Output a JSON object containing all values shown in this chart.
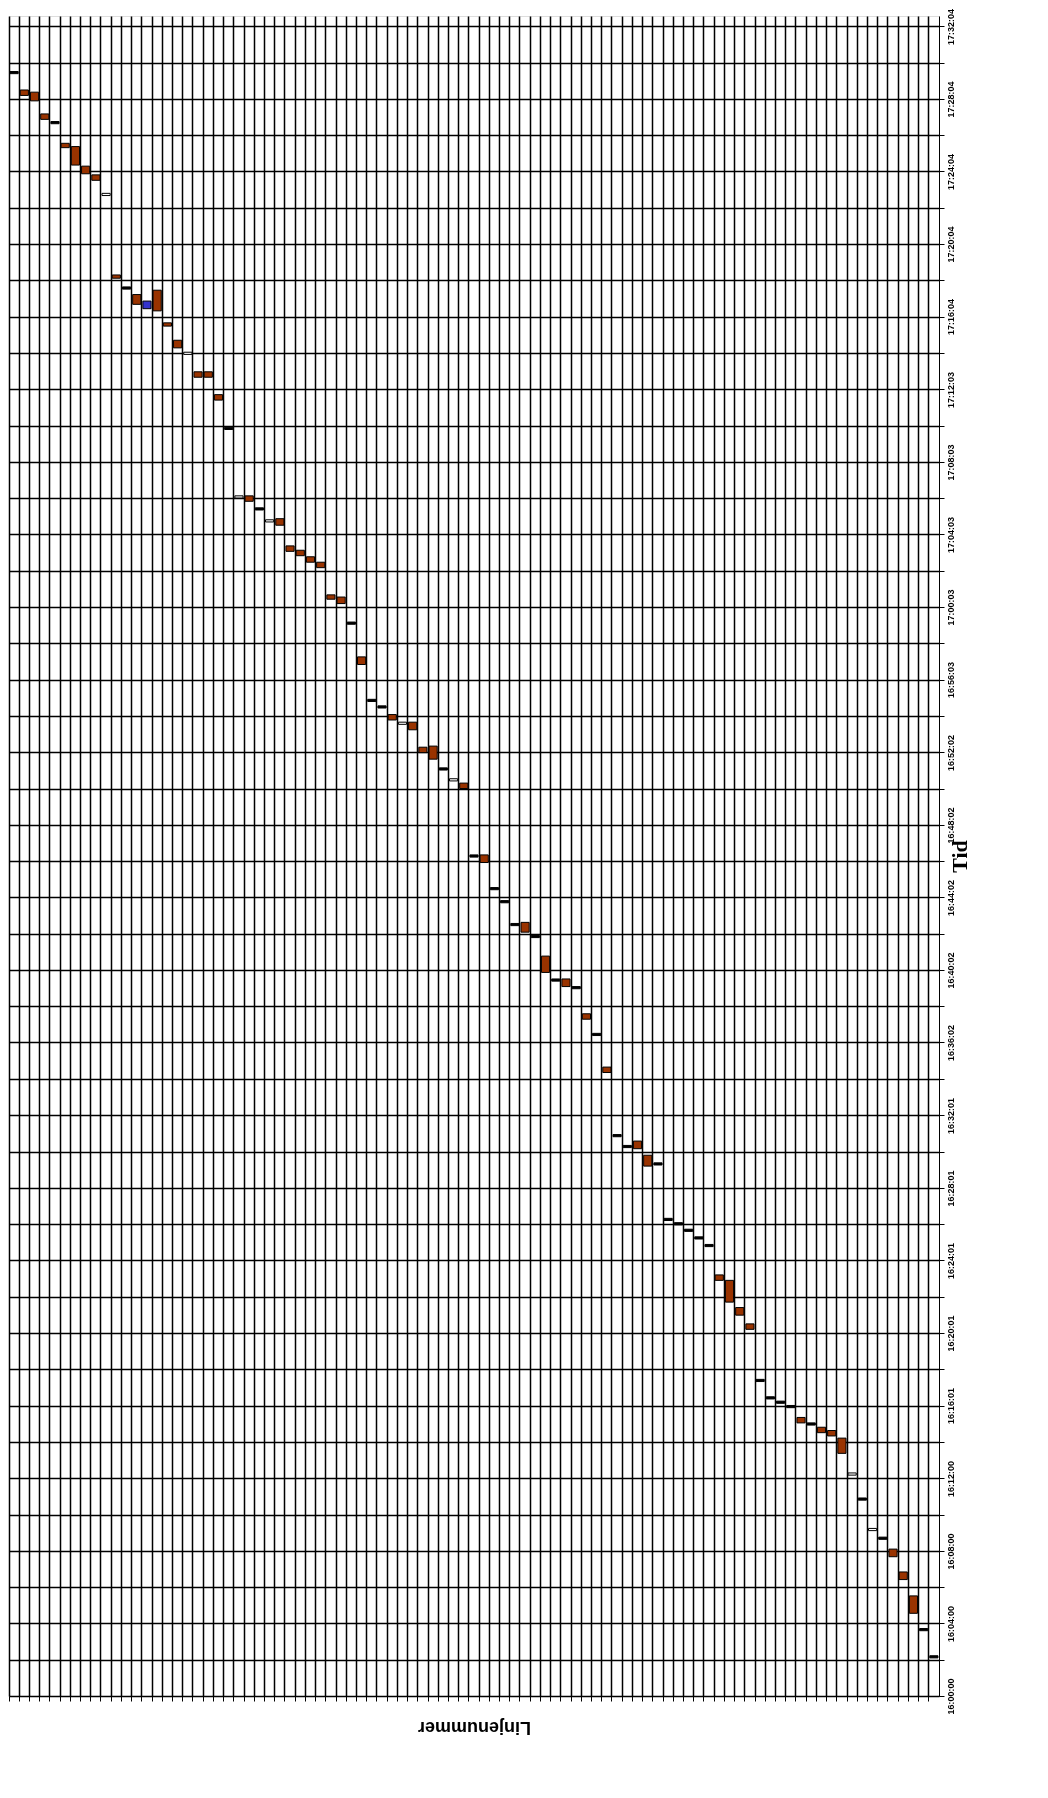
{
  "chart_data": {
    "type": "bar",
    "xlabel": "Linjenummer",
    "ylabel": "Tid",
    "grid": true,
    "categories": [
      null,
      null,
      null,
      null,
      null,
      null,
      null,
      null,
      null,
      null,
      null,
      null,
      null,
      null,
      null,
      null,
      null,
      null,
      null,
      null,
      null,
      null,
      null,
      null,
      null,
      null,
      null,
      null,
      null,
      null,
      null,
      null,
      null,
      null,
      null,
      null,
      null,
      null,
      null,
      null,
      null,
      null,
      null,
      null,
      null,
      null,
      null,
      null,
      null,
      null,
      null,
      null,
      null,
      null,
      null,
      null,
      null,
      null,
      null,
      null,
      null,
      null,
      null,
      null,
      null,
      null,
      null,
      null,
      null,
      null,
      null,
      null,
      null,
      null,
      null,
      null,
      null,
      null,
      null,
      null,
      null,
      null,
      null,
      null,
      null,
      null,
      null,
      null,
      null,
      null,
      null
    ],
    "base": [
      17.491,
      17.471,
      17.466,
      17.449,
      17.445,
      17.423,
      17.407,
      17.399,
      17.393,
      17.379,
      17.303,
      17.293,
      17.279,
      17.275,
      17.273,
      17.259,
      17.239,
      17.233,
      17.212,
      17.212,
      17.191,
      17.164,
      17.101,
      17.098,
      17.09,
      17.079,
      17.076,
      17.052,
      17.048,
      17.042,
      17.037,
      17.008,
      17.004,
      16.985,
      16.948,
      16.914,
      16.908,
      16.897,
      16.893,
      16.888,
      16.867,
      16.861,
      16.851,
      16.841,
      16.834,
      16.771,
      16.766,
      16.741,
      16.729,
      16.708,
      16.702,
      16.697,
      16.665,
      16.657,
      16.652,
      16.65,
      16.622,
      16.607,
      16.573,
      16.514,
      16.504,
      16.503,
      16.487,
      16.488,
      16.437,
      16.433,
      16.427,
      16.42,
      16.413,
      16.382,
      16.362,
      16.35,
      16.337,
      16.289,
      16.273,
      16.269,
      16.265,
      16.251,
      16.249,
      16.242,
      16.239,
      16.223,
      16.203,
      16.18,
      16.152,
      16.144,
      16.128,
      16.107,
      16.076,
      16.06,
      16.035
    ],
    "values": [
      0.002,
      0.005,
      0.008,
      0.005,
      0.002,
      0.004,
      0.017,
      0.007,
      0.005,
      0.002,
      0.003,
      0.002,
      0.009,
      0.007,
      0.019,
      0.003,
      0.007,
      0.002,
      0.005,
      0.005,
      0.005,
      0.002,
      0.002,
      0.005,
      0.002,
      0.002,
      0.006,
      0.005,
      0.005,
      0.005,
      0.005,
      0.004,
      0.006,
      0.002,
      0.007,
      0.002,
      0.002,
      0.005,
      0.002,
      0.007,
      0.005,
      0.012,
      0.002,
      0.002,
      0.005,
      0.002,
      0.007,
      0.002,
      0.002,
      0.002,
      0.009,
      0.002,
      0.015,
      0.002,
      0.007,
      0.002,
      0.005,
      0.002,
      0.005,
      0.002,
      0.002,
      0.007,
      0.01,
      0.002,
      0.002,
      0.002,
      0.002,
      0.002,
      0.002,
      0.005,
      0.02,
      0.007,
      0.005,
      0.002,
      0.002,
      0.002,
      0.002,
      0.005,
      0.002,
      0.005,
      0.005,
      0.014,
      0.002,
      0.002,
      0.002,
      0.002,
      0.007,
      0.007,
      0.016,
      0.002,
      0.002
    ],
    "colors": [
      "#000000",
      "#993300",
      "#993300",
      "#993300",
      "#000000",
      "#993300",
      "#993300",
      "#993300",
      "#993300",
      "#ffffff",
      "#993300",
      "#000000",
      "#993300",
      "#3333cc",
      "#993300",
      "#993300",
      "#993300",
      "#ffffff",
      "#993300",
      "#993300",
      "#993300",
      "#000000",
      "#ffffff",
      "#993300",
      "#000000",
      "#ffffff",
      "#993300",
      "#993300",
      "#993300",
      "#993300",
      "#993300",
      "#993300",
      "#993300",
      "#000000",
      "#993300",
      "#000000",
      "#000000",
      "#993300",
      "#ffffff",
      "#993300",
      "#993300",
      "#993300",
      "#000000",
      "#ffffff",
      "#993300",
      "#000000",
      "#993300",
      "#000000",
      "#000000",
      "#000000",
      "#993300",
      "#000000",
      "#993300",
      "#000000",
      "#993300",
      "#000000",
      "#993300",
      "#000000",
      "#993300",
      "#000000",
      "#000000",
      "#993300",
      "#993300",
      "#000000",
      "#000000",
      "#000000",
      "#000000",
      "#000000",
      "#000000",
      "#993300",
      "#993300",
      "#993300",
      "#993300",
      "#000000",
      "#000000",
      "#000000",
      "#000000",
      "#993300",
      "#000000",
      "#993300",
      "#993300",
      "#993300",
      "#ffffff",
      "#000000",
      "#ffffff",
      "#000000",
      "#993300",
      "#993300",
      "#993300",
      "#000000",
      "#000000"
    ],
    "ylim": [
      16.0,
      17.544
    ],
    "yticks": [
      {
        "value": 16.0,
        "label": "16:00:00"
      },
      {
        "value": 16.0333,
        "label": null
      },
      {
        "value": 16.0667,
        "label": "16:04:00"
      },
      {
        "value": 16.1,
        "label": null
      },
      {
        "value": 16.1333,
        "label": "16:08:00"
      },
      {
        "value": 16.1667,
        "label": null
      },
      {
        "value": 16.2,
        "label": "16:12:00"
      },
      {
        "value": 16.2334,
        "label": null
      },
      {
        "value": 16.2669,
        "label": "16:16:01"
      },
      {
        "value": 16.3002,
        "label": null
      },
      {
        "value": 16.3336,
        "label": "16:20:01"
      },
      {
        "value": 16.3669,
        "label": null
      },
      {
        "value": 16.4003,
        "label": "16:24:01"
      },
      {
        "value": 16.4336,
        "label": null
      },
      {
        "value": 16.4669,
        "label": "16:28:01"
      },
      {
        "value": 16.5003,
        "label": null
      },
      {
        "value": 16.5336,
        "label": "16:32:01"
      },
      {
        "value": 16.5671,
        "label": null
      },
      {
        "value": 16.6006,
        "label": "16:36:02"
      },
      {
        "value": 16.6339,
        "label": null
      },
      {
        "value": 16.6672,
        "label": "16:40:02"
      },
      {
        "value": 16.7006,
        "label": null
      },
      {
        "value": 16.7339,
        "label": "16:44:02"
      },
      {
        "value": 16.7672,
        "label": null
      },
      {
        "value": 16.8006,
        "label": "16:48:02"
      },
      {
        "value": 16.8339,
        "label": null
      },
      {
        "value": 16.8672,
        "label": "16:52:02"
      },
      {
        "value": 16.9007,
        "label": null
      },
      {
        "value": 16.9342,
        "label": "16:56:03"
      },
      {
        "value": 16.9675,
        "label": null
      },
      {
        "value": 17.0008,
        "label": "17:00:03"
      },
      {
        "value": 17.0342,
        "label": null
      },
      {
        "value": 17.0675,
        "label": "17:04:03"
      },
      {
        "value": 17.1008,
        "label": null
      },
      {
        "value": 17.1342,
        "label": "17:08:03"
      },
      {
        "value": 17.1675,
        "label": null
      },
      {
        "value": 17.2008,
        "label": "17:12:03"
      },
      {
        "value": 17.2343,
        "label": null
      },
      {
        "value": 17.2678,
        "label": "17:16:04"
      },
      {
        "value": 17.3011,
        "label": null
      },
      {
        "value": 17.3344,
        "label": "17:20:04"
      },
      {
        "value": 17.3678,
        "label": null
      },
      {
        "value": 17.4011,
        "label": "17:24:04"
      },
      {
        "value": 17.4344,
        "label": null
      },
      {
        "value": 17.4678,
        "label": "17:28:04"
      },
      {
        "value": 17.5011,
        "label": null
      },
      {
        "value": 17.5344,
        "label": "17:32:04"
      }
    ]
  }
}
